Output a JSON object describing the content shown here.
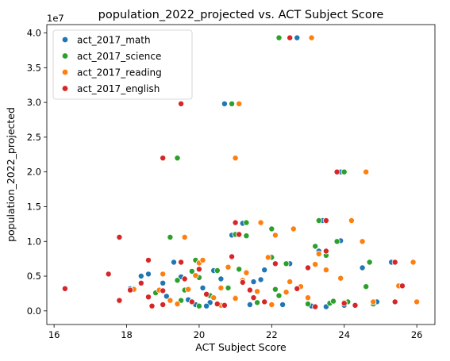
{
  "chart_data": {
    "type": "scatter",
    "title": "population_2022_projected vs. ACT Subject Score",
    "xlabel": "ACT Subject Score",
    "ylabel": "population_2022_projected",
    "y_offset_label": "1e7",
    "xlim": [
      15.8,
      26.5
    ],
    "ylim": [
      -1960000,
      41200000
    ],
    "x_ticks": [
      16,
      18,
      20,
      22,
      24,
      26
    ],
    "y_ticks": [
      0,
      5000000,
      10000000,
      15000000,
      20000000,
      25000000,
      30000000,
      35000000,
      40000000
    ],
    "y_tick_labels": [
      "0.0",
      "0.5",
      "1.0",
      "1.5",
      "2.0",
      "2.5",
      "3.0",
      "3.5",
      "4.0"
    ],
    "grid": false,
    "legend_position": "top-left",
    "series": [
      {
        "name": "act_2017_math",
        "color": "#1f77b4",
        "points": [
          [
            18.4,
            5000000
          ],
          [
            18.6,
            5300000
          ],
          [
            18.9,
            3000000
          ],
          [
            19.0,
            4000000
          ],
          [
            19.3,
            7000000
          ],
          [
            19.5,
            4900000
          ],
          [
            19.7,
            1600000
          ],
          [
            19.9,
            900000
          ],
          [
            20.1,
            3300000
          ],
          [
            20.3,
            1200000
          ],
          [
            20.4,
            5800000
          ],
          [
            20.6,
            4600000
          ],
          [
            20.7,
            29800000
          ],
          [
            20.9,
            10900000
          ],
          [
            21.2,
            12600000
          ],
          [
            21.5,
            4200000
          ],
          [
            21.8,
            5900000
          ],
          [
            22.0,
            7800000
          ],
          [
            22.5,
            6800000
          ],
          [
            22.7,
            39300000
          ],
          [
            23.3,
            8600000
          ],
          [
            23.4,
            13000000
          ],
          [
            23.7,
            1300000
          ],
          [
            23.9,
            20000000
          ],
          [
            23.9,
            10100000
          ],
          [
            24.0,
            800000
          ],
          [
            24.5,
            6200000
          ],
          [
            25.3,
            7000000
          ],
          [
            25.5,
            3600000
          ],
          [
            18.1,
            3200000
          ],
          [
            19.1,
            2100000
          ],
          [
            21.0,
            1900000
          ],
          [
            22.3,
            900000
          ],
          [
            23.1,
            700000
          ],
          [
            24.9,
            1300000
          ],
          [
            20.2,
            700000
          ],
          [
            21.4,
            900000
          ],
          [
            17.8,
            1400000
          ],
          [
            23.5,
            600000
          ],
          [
            21.7,
            4500000
          ]
        ]
      },
      {
        "name": "act_2017_science",
        "color": "#2ca02c",
        "points": [
          [
            18.2,
            3200000
          ],
          [
            19.2,
            10600000
          ],
          [
            19.4,
            22000000
          ],
          [
            19.4,
            4400000
          ],
          [
            19.8,
            5700000
          ],
          [
            19.9,
            7300000
          ],
          [
            20.0,
            4800000
          ],
          [
            20.5,
            5800000
          ],
          [
            20.9,
            29800000
          ],
          [
            21.0,
            11000000
          ],
          [
            21.3,
            12700000
          ],
          [
            21.3,
            10800000
          ],
          [
            22.0,
            11800000
          ],
          [
            22.0,
            7700000
          ],
          [
            22.2,
            39300000
          ],
          [
            22.4,
            6800000
          ],
          [
            23.2,
            9300000
          ],
          [
            23.3,
            13000000
          ],
          [
            23.5,
            8000000
          ],
          [
            23.8,
            10000000
          ],
          [
            24.0,
            20000000
          ],
          [
            24.6,
            3500000
          ],
          [
            24.7,
            7000000
          ],
          [
            20.3,
            2200000
          ],
          [
            21.6,
            1200000
          ],
          [
            22.1,
            3100000
          ],
          [
            23.0,
            1000000
          ],
          [
            23.6,
            1100000
          ],
          [
            24.1,
            1300000
          ],
          [
            18.8,
            2600000
          ],
          [
            19.5,
            1500000
          ],
          [
            20.8,
            3300000
          ],
          [
            22.2,
            2200000
          ],
          [
            24.8,
            1000000
          ],
          [
            21.1,
            6000000
          ],
          [
            19.6,
            3000000
          ],
          [
            23.7,
            1400000
          ],
          [
            20.0,
            700000
          ]
        ]
      },
      {
        "name": "act_2017_reading",
        "color": "#ff7f0e",
        "points": [
          [
            18.2,
            3100000
          ],
          [
            18.9,
            3000000
          ],
          [
            19.0,
            5300000
          ],
          [
            19.2,
            1500000
          ],
          [
            19.6,
            10600000
          ],
          [
            19.7,
            3100000
          ],
          [
            19.9,
            5100000
          ],
          [
            20.0,
            6900000
          ],
          [
            20.1,
            7300000
          ],
          [
            20.4,
            1900000
          ],
          [
            20.6,
            3300000
          ],
          [
            20.8,
            6300000
          ],
          [
            21.0,
            22000000
          ],
          [
            21.1,
            29800000
          ],
          [
            21.2,
            4400000
          ],
          [
            21.3,
            5500000
          ],
          [
            21.7,
            12700000
          ],
          [
            21.9,
            7700000
          ],
          [
            22.1,
            10900000
          ],
          [
            22.5,
            4200000
          ],
          [
            22.6,
            11800000
          ],
          [
            22.8,
            3500000
          ],
          [
            23.0,
            1900000
          ],
          [
            23.1,
            39300000
          ],
          [
            23.2,
            6700000
          ],
          [
            23.5,
            5900000
          ],
          [
            23.9,
            4700000
          ],
          [
            24.2,
            13000000
          ],
          [
            24.5,
            10000000
          ],
          [
            24.6,
            20000000
          ],
          [
            24.8,
            1300000
          ],
          [
            25.5,
            3600000
          ],
          [
            25.9,
            7000000
          ],
          [
            26.0,
            1300000
          ],
          [
            20.6,
            800000
          ],
          [
            22.4,
            2700000
          ],
          [
            23.3,
            8200000
          ],
          [
            19.4,
            1000000
          ],
          [
            21.6,
            2800000
          ],
          [
            24.0,
            1200000
          ],
          [
            21.0,
            1800000
          ],
          [
            22.0,
            900000
          ]
        ]
      },
      {
        "name": "act_2017_english",
        "color": "#d62728",
        "points": [
          [
            16.3,
            3200000
          ],
          [
            17.5,
            5300000
          ],
          [
            17.8,
            10600000
          ],
          [
            17.8,
            1500000
          ],
          [
            18.4,
            4000000
          ],
          [
            18.6,
            7300000
          ],
          [
            18.6,
            2000000
          ],
          [
            18.7,
            700000
          ],
          [
            19.0,
            22000000
          ],
          [
            19.0,
            900000
          ],
          [
            19.5,
            29800000
          ],
          [
            19.5,
            7000000
          ],
          [
            19.6,
            4600000
          ],
          [
            19.8,
            1300000
          ],
          [
            20.0,
            6000000
          ],
          [
            20.5,
            1000000
          ],
          [
            20.7,
            800000
          ],
          [
            20.9,
            7800000
          ],
          [
            21.0,
            12700000
          ],
          [
            21.1,
            11000000
          ],
          [
            21.2,
            4100000
          ],
          [
            21.4,
            3000000
          ],
          [
            21.8,
            1300000
          ],
          [
            22.1,
            6800000
          ],
          [
            22.5,
            39300000
          ],
          [
            22.7,
            3200000
          ],
          [
            23.2,
            600000
          ],
          [
            23.5,
            13000000
          ],
          [
            23.5,
            8600000
          ],
          [
            23.8,
            20000000
          ],
          [
            24.0,
            1100000
          ],
          [
            24.3,
            800000
          ],
          [
            25.4,
            1300000
          ],
          [
            25.4,
            7000000
          ],
          [
            25.6,
            3600000
          ],
          [
            19.0,
            2900000
          ],
          [
            21.5,
            1900000
          ],
          [
            20.2,
            2400000
          ],
          [
            23.0,
            6200000
          ],
          [
            18.1,
            3000000
          ]
        ]
      }
    ]
  }
}
